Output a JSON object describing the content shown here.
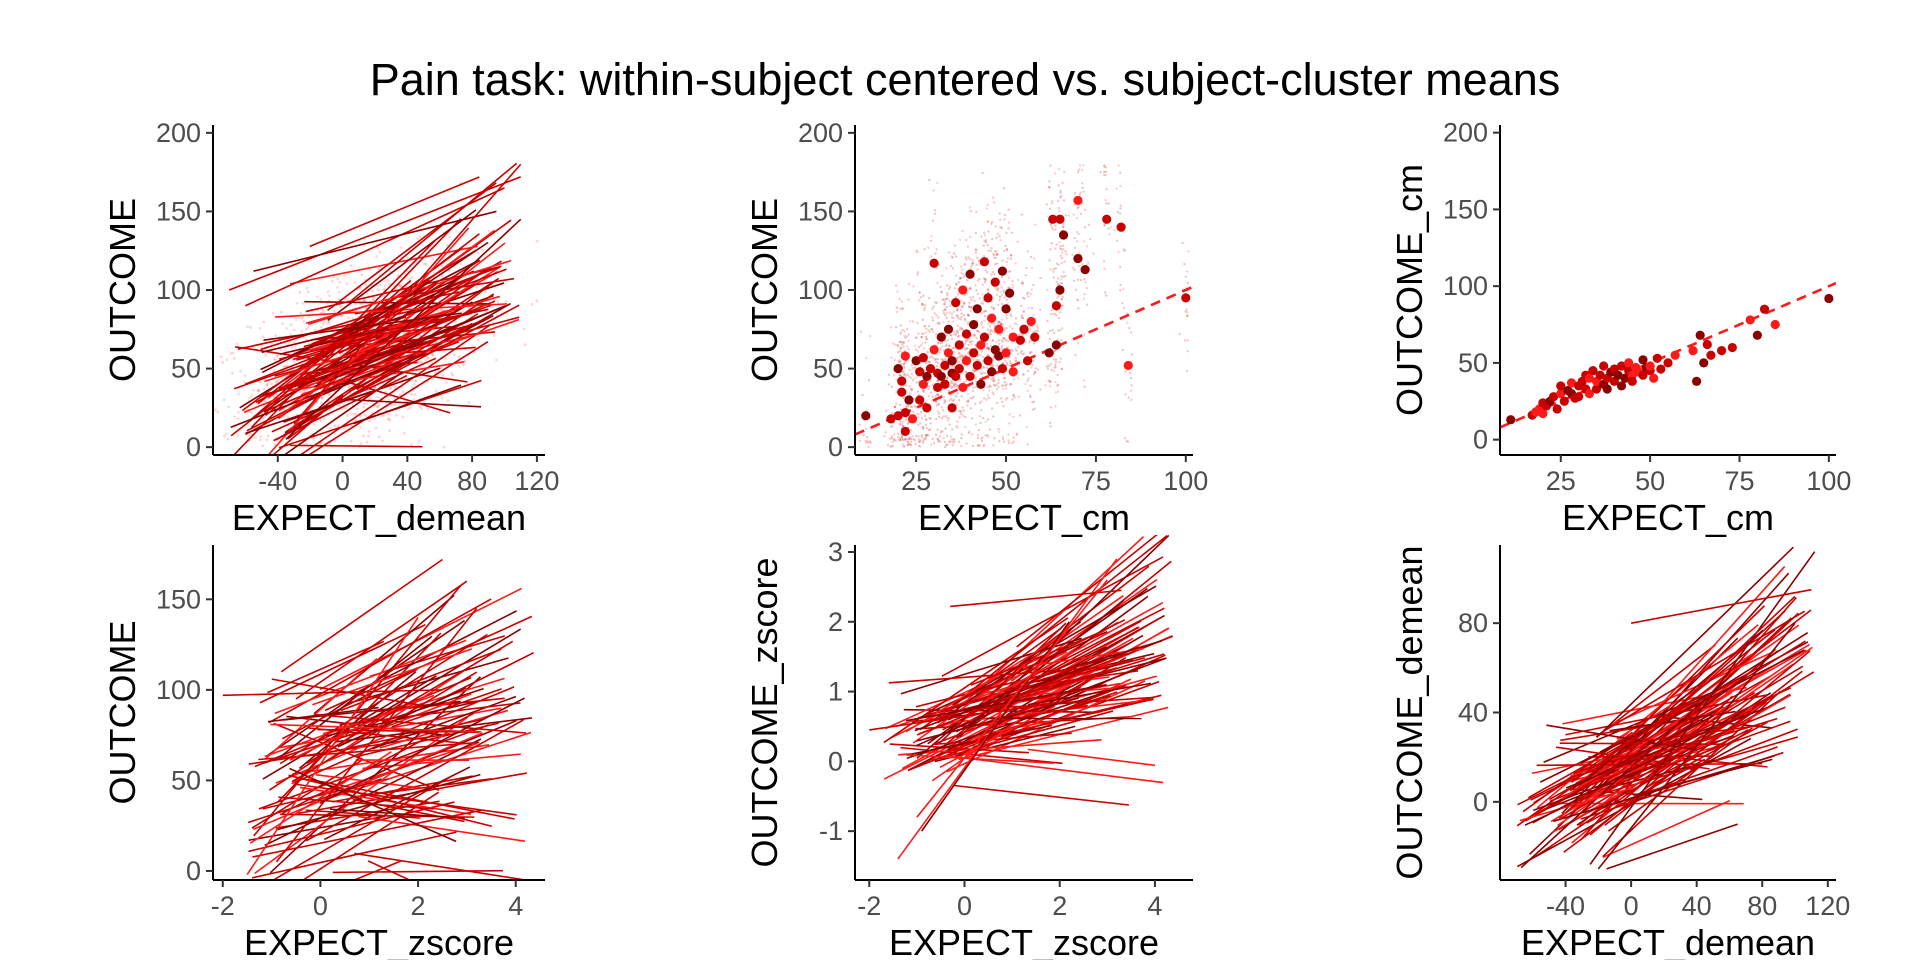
{
  "chart_data": {
    "title": "Pain task: within-subject centered vs. subject-cluster means",
    "colors": {
      "dark": "#8b0000",
      "mid": "#c80000",
      "bright": "#ff1a1a",
      "point": "#d40000"
    },
    "panels": [
      {
        "id": "p1",
        "type": "line",
        "xlabel": "EXPECT_demean",
        "ylabel": "OUTCOME",
        "xlim": [
          -80,
          125
        ],
        "ylim": [
          -5,
          205
        ],
        "xticks": [
          -40,
          0,
          40,
          80,
          120
        ],
        "yticks": [
          0,
          50,
          100,
          150,
          200
        ],
        "cloud": {
          "n": 1400,
          "mean": [
            15,
            60
          ],
          "sd": [
            35,
            32
          ],
          "slope": 0.35
        },
        "lines": {
          "n": 110,
          "xrange": [
            -70,
            110
          ],
          "intercept_mean": 60,
          "intercept_sd": 20,
          "slope_mean": 0.45,
          "slope_sd": 0.25
        },
        "extra_lines": [
          {
            "x": [
              -70,
              110
            ],
            "y": [
              100,
              172
            ]
          },
          {
            "x": [
              -60,
              100
            ],
            "y": [
              90,
              165
            ]
          },
          {
            "x": [
              -55,
              95
            ],
            "y": [
              112,
              150
            ]
          },
          {
            "x": [
              -30,
              110
            ],
            "y": [
              15,
              180
            ]
          },
          {
            "x": [
              -35,
              110
            ],
            "y": [
              5,
              145
            ]
          }
        ]
      },
      {
        "id": "p2",
        "type": "scatter",
        "xlabel": "EXPECT_cm",
        "ylabel": "OUTCOME",
        "xlim": [
          8,
          102
        ],
        "ylim": [
          -5,
          205
        ],
        "xticks": [
          25,
          50,
          75,
          100
        ],
        "yticks": [
          0,
          50,
          100,
          150,
          200
        ],
        "cloud": {
          "n": 1800,
          "xsd": 3.0,
          "ysd": 28
        },
        "fit": {
          "slope": 1.0,
          "intercept": 0,
          "dashed": true
        },
        "points": [
          [
            11,
            20
          ],
          [
            18,
            18
          ],
          [
            20,
            20
          ],
          [
            20,
            50
          ],
          [
            21,
            35
          ],
          [
            21,
            42
          ],
          [
            22,
            10
          ],
          [
            22,
            22
          ],
          [
            22,
            58
          ],
          [
            23,
            30
          ],
          [
            24,
            18
          ],
          [
            25,
            55
          ],
          [
            26,
            48
          ],
          [
            26,
            30
          ],
          [
            27,
            40
          ],
          [
            27,
            57
          ],
          [
            28,
            45
          ],
          [
            28,
            25
          ],
          [
            29,
            50
          ],
          [
            30,
            62
          ],
          [
            30,
            117
          ],
          [
            31,
            47
          ],
          [
            31,
            38
          ],
          [
            32,
            45
          ],
          [
            32,
            70
          ],
          [
            33,
            52
          ],
          [
            33,
            40
          ],
          [
            34,
            75
          ],
          [
            34,
            60
          ],
          [
            35,
            47
          ],
          [
            35,
            55
          ],
          [
            35,
            25
          ],
          [
            36,
            92
          ],
          [
            36,
            45
          ],
          [
            37,
            50
          ],
          [
            37,
            65
          ],
          [
            38,
            100
          ],
          [
            38,
            38
          ],
          [
            39,
            72
          ],
          [
            39,
            55
          ],
          [
            40,
            110
          ],
          [
            40,
            45
          ],
          [
            41,
            78
          ],
          [
            41,
            60
          ],
          [
            42,
            52
          ],
          [
            42,
            88
          ],
          [
            43,
            40
          ],
          [
            43,
            65
          ],
          [
            44,
            118
          ],
          [
            44,
            70
          ],
          [
            45,
            95
          ],
          [
            45,
            55
          ],
          [
            46,
            48
          ],
          [
            46,
            82
          ],
          [
            47,
            62
          ],
          [
            47,
            105
          ],
          [
            48,
            58
          ],
          [
            48,
            75
          ],
          [
            49,
            112
          ],
          [
            49,
            50
          ],
          [
            50,
            60
          ],
          [
            50,
            88
          ],
          [
            51,
            98
          ],
          [
            52,
            48
          ],
          [
            52,
            70
          ],
          [
            54,
            68
          ],
          [
            55,
            75
          ],
          [
            56,
            55
          ],
          [
            57,
            80
          ],
          [
            58,
            70
          ],
          [
            62,
            60
          ],
          [
            63,
            145
          ],
          [
            64,
            65
          ],
          [
            64,
            90
          ],
          [
            65,
            100
          ],
          [
            65,
            145
          ],
          [
            66,
            135
          ],
          [
            70,
            120
          ],
          [
            70,
            157
          ],
          [
            72,
            113
          ],
          [
            78,
            145
          ],
          [
            82,
            140
          ],
          [
            84,
            52
          ],
          [
            100,
            95
          ]
        ]
      },
      {
        "id": "p3",
        "type": "scatter",
        "xlabel": "EXPECT_cm",
        "ylabel": "OUTCOME_cm",
        "xlim": [
          8,
          102
        ],
        "ylim": [
          -10,
          205
        ],
        "xticks": [
          25,
          50,
          75,
          100
        ],
        "yticks": [
          0,
          50,
          100,
          150,
          200
        ],
        "fit": {
          "slope": 1.0,
          "intercept": 0,
          "dashed": true
        },
        "points": [
          [
            11,
            13
          ],
          [
            17,
            16
          ],
          [
            18,
            18
          ],
          [
            19,
            20
          ],
          [
            20,
            17
          ],
          [
            20,
            24
          ],
          [
            21,
            22
          ],
          [
            22,
            25
          ],
          [
            23,
            28
          ],
          [
            24,
            20
          ],
          [
            25,
            30
          ],
          [
            25,
            35
          ],
          [
            26,
            25
          ],
          [
            27,
            32
          ],
          [
            28,
            30
          ],
          [
            28,
            37
          ],
          [
            29,
            27
          ],
          [
            30,
            35
          ],
          [
            30,
            28
          ],
          [
            31,
            38
          ],
          [
            32,
            33
          ],
          [
            32,
            42
          ],
          [
            33,
            30
          ],
          [
            33,
            40
          ],
          [
            34,
            45
          ],
          [
            35,
            33
          ],
          [
            35,
            38
          ],
          [
            36,
            42
          ],
          [
            37,
            36
          ],
          [
            37,
            48
          ],
          [
            38,
            40
          ],
          [
            38,
            33
          ],
          [
            39,
            44
          ],
          [
            40,
            38
          ],
          [
            40,
            46
          ],
          [
            41,
            42
          ],
          [
            42,
            48
          ],
          [
            42,
            35
          ],
          [
            43,
            40
          ],
          [
            44,
            45
          ],
          [
            44,
            50
          ],
          [
            45,
            42
          ],
          [
            45,
            38
          ],
          [
            46,
            47
          ],
          [
            47,
            44
          ],
          [
            48,
            42
          ],
          [
            48,
            52
          ],
          [
            49,
            47
          ],
          [
            50,
            45
          ],
          [
            50,
            48
          ],
          [
            51,
            40
          ],
          [
            52,
            53
          ],
          [
            53,
            46
          ],
          [
            55,
            50
          ],
          [
            57,
            55
          ],
          [
            62,
            58
          ],
          [
            63,
            38
          ],
          [
            64,
            68
          ],
          [
            65,
            50
          ],
          [
            66,
            62
          ],
          [
            67,
            55
          ],
          [
            70,
            58
          ],
          [
            73,
            60
          ],
          [
            78,
            78
          ],
          [
            80,
            68
          ],
          [
            82,
            85
          ],
          [
            85,
            75
          ],
          [
            100,
            92
          ]
        ]
      },
      {
        "id": "p4",
        "type": "line",
        "xlabel": "EXPECT_zscore",
        "ylabel": "OUTCOME",
        "xlim": [
          -2.2,
          4.6
        ],
        "ylim": [
          -5,
          180
        ],
        "xticks": [
          -2,
          0,
          2,
          4
        ],
        "yticks": [
          0,
          50,
          100,
          150
        ],
        "lines": {
          "n": 105,
          "xrange": [
            -1.5,
            4.4
          ],
          "intercept_mean": 55,
          "intercept_sd": 22,
          "slope_mean": 9,
          "slope_sd": 8
        },
        "extra_lines": [
          {
            "x": [
              -0.8,
              2.5
            ],
            "y": [
              110,
              172
            ]
          },
          {
            "x": [
              -0.5,
              3.0
            ],
            "y": [
              95,
              160
            ]
          },
          {
            "x": [
              -1.5,
              2.0
            ],
            "y": [
              -2,
              140
            ]
          },
          {
            "x": [
              -0.9,
              3.2
            ],
            "y": [
              5,
              145
            ]
          },
          {
            "x": [
              -2.0,
              2.5
            ],
            "y": [
              97,
              100
            ]
          }
        ]
      },
      {
        "id": "p5",
        "type": "line",
        "xlabel": "EXPECT_zscore",
        "ylabel": "OUTCOME_zscore",
        "xlim": [
          -2.3,
          4.8
        ],
        "ylim": [
          -1.7,
          3.1
        ],
        "xticks": [
          -2,
          0,
          2,
          4
        ],
        "yticks": [
          -1,
          0,
          1,
          2,
          3
        ],
        "lines": {
          "n": 110,
          "xrange": [
            -1.8,
            4.4
          ],
          "intercept_mean": 0.55,
          "intercept_sd": 0.35,
          "slope_mean": 0.28,
          "slope_sd": 0.18
        },
        "extra_lines": [
          {
            "x": [
              -1.4,
              3.2
            ],
            "y": [
              -1.4,
              2.9
            ]
          },
          {
            "x": [
              -0.3,
              3.3
            ],
            "y": [
              2.22,
              2.45
            ]
          },
          {
            "x": [
              -0.9,
              2.2
            ],
            "y": [
              -1.0,
              2.0
            ]
          },
          {
            "x": [
              -1.0,
              3.0
            ],
            "y": [
              -0.8,
              2.6
            ]
          },
          {
            "x": [
              -2.0,
              2.0
            ],
            "y": [
              0.45,
              0.85
            ]
          }
        ]
      },
      {
        "id": "p6",
        "type": "line",
        "xlabel": "EXPECT_demean",
        "ylabel": "OUTCOME_demean",
        "xlim": [
          -80,
          125
        ],
        "ylim": [
          -35,
          115
        ],
        "xticks": [
          -40,
          0,
          40,
          80,
          120
        ],
        "yticks": [
          0,
          40,
          80
        ],
        "lines": {
          "n": 110,
          "xrange": [
            -70,
            112
          ],
          "intercept_mean": 18,
          "intercept_sd": 12,
          "slope_mean": 0.38,
          "slope_sd": 0.22
        },
        "extra_lines": [
          {
            "x": [
              -25,
              112
            ],
            "y": [
              -28,
              112
            ]
          },
          {
            "x": [
              -20,
              100
            ],
            "y": [
              -30,
              80
            ]
          },
          {
            "x": [
              -40,
              100
            ],
            "y": [
              -5,
              92
            ]
          },
          {
            "x": [
              -15,
              65
            ],
            "y": [
              -30,
              -10
            ]
          },
          {
            "x": [
              0,
              110
            ],
            "y": [
              80,
              95
            ]
          }
        ]
      }
    ]
  }
}
